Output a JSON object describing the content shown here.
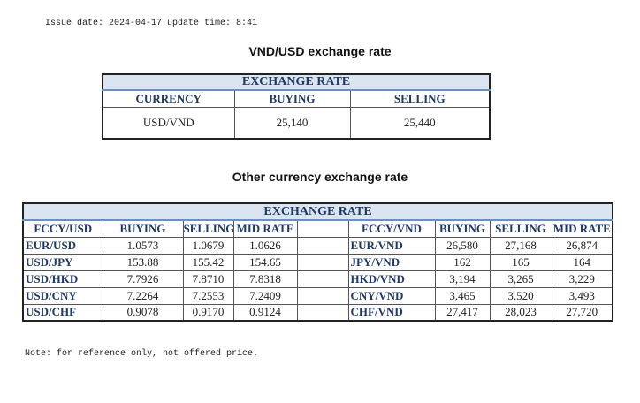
{
  "issue_line": "Issue date: 2024-04-17 update time: 8:41",
  "title1": "VND/USD exchange rate",
  "table1": {
    "caption": "EXCHANGE RATE",
    "headers": [
      "CURRENCY",
      "BUYING",
      "SELLING"
    ],
    "rows": [
      [
        "USD/VND",
        "25,140",
        "25,440"
      ]
    ]
  },
  "title2": "Other currency exchange rate",
  "table2": {
    "caption": "EXCHANGE  RATE",
    "left_headers": [
      "FCCY/USD",
      "BUYING",
      "SELLING",
      "MID RATE"
    ],
    "right_headers": [
      "FCCY/VND",
      "BUYING",
      "SELLING",
      "MID RATE"
    ],
    "left_rows": [
      [
        "EUR/USD",
        "1.0573",
        "1.0679",
        "1.0626"
      ],
      [
        "USD/JPY",
        "153.88",
        "155.42",
        "154.65"
      ],
      [
        "USD/HKD",
        "7.7926",
        "7.8710",
        "7.8318"
      ],
      [
        "USD/CNY",
        "7.2264",
        "7.2553",
        "7.2409"
      ],
      [
        "USD/CHF",
        "0.9078",
        "0.9170",
        "0.9124"
      ]
    ],
    "right_rows": [
      [
        "EUR/VND",
        "26,580",
        "27,168",
        "26,874"
      ],
      [
        "JPY/VND",
        "162",
        "165",
        "164"
      ],
      [
        "HKD/VND",
        "3,194",
        "3,265",
        "3,229"
      ],
      [
        "CNY/VND",
        "3,465",
        "3,520",
        "3,493"
      ],
      [
        "CHF/VND",
        "27,417",
        "28,023",
        "27,720"
      ]
    ]
  },
  "note": "Note: for reference only, not offered price."
}
